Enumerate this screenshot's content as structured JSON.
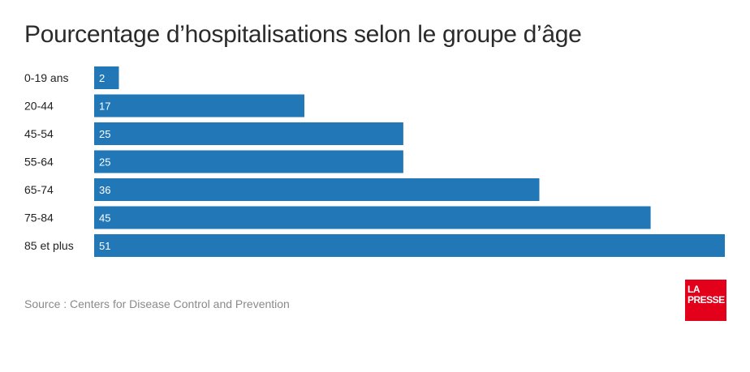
{
  "title": "Pourcentage d’hospitalisations selon le groupe d’âge",
  "source": "Source : Centers for Disease Control and Prevention",
  "logo": {
    "line1": "LA",
    "line2": "PRESSE",
    "color": "#e3001b"
  },
  "colors": {
    "bar": "#2277b6",
    "bar_label": "#ffffff",
    "category_label": "#222222"
  },
  "chart_data": {
    "type": "bar",
    "orientation": "horizontal",
    "title": "Pourcentage d’hospitalisations selon le groupe d’âge",
    "categories": [
      "0-19 ans",
      "20-44",
      "45-54",
      "55-64",
      "65-74",
      "75-84",
      "85 et plus"
    ],
    "values": [
      2,
      17,
      25,
      25,
      36,
      45,
      51
    ],
    "data_labels": [
      "2",
      "17",
      "25",
      "25",
      "36",
      "45",
      "51"
    ],
    "xlim": [
      0,
      51
    ],
    "grid": false,
    "legend": "none",
    "xlabel": "",
    "ylabel": ""
  }
}
